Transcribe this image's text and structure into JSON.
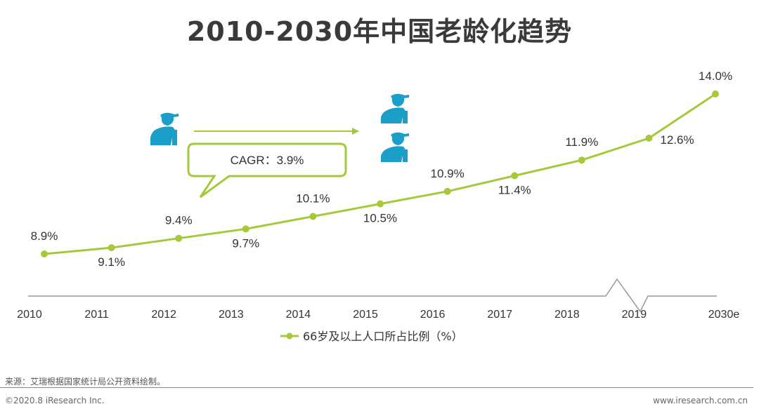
{
  "title": "2010-2030年中国老龄化趋势",
  "cagr_text": "CAGR：3.9%",
  "source_note": "来源：艾瑞根据国家统计局公开资料绘制。",
  "copyright": "©2020.8 iResearch Inc.",
  "website": "www.iresearch.com.cn",
  "colors": {
    "line": "#a5c93a",
    "icon": "#1b9fc8",
    "callout": "#a5c93a",
    "axis": "#999999"
  },
  "icons": [
    "elderly-person-icon",
    "elderly-person-icon",
    "elderly-person-icon"
  ],
  "chart_data": {
    "type": "line",
    "title": "2010-2030年中国老龄化趋势",
    "categories": [
      "2010",
      "2011",
      "2012",
      "2013",
      "2014",
      "2015",
      "2016",
      "2017",
      "2018",
      "2019",
      "2030e"
    ],
    "series": [
      {
        "name": "66岁及以上人口所占比例（%）",
        "values": [
          8.9,
          9.1,
          9.4,
          9.7,
          10.1,
          10.5,
          10.9,
          11.4,
          11.9,
          12.6,
          14.0
        ],
        "labels": [
          "8.9%",
          "9.1%",
          "9.4%",
          "9.7%",
          "10.1%",
          "10.5%",
          "10.9%",
          "11.4%",
          "11.9%",
          "12.6%",
          "14.0%"
        ]
      }
    ],
    "axis_break": "between 2019 and 2030e",
    "xlabel": "",
    "ylabel": "",
    "grid": false,
    "legend_position": "bottom-center"
  }
}
